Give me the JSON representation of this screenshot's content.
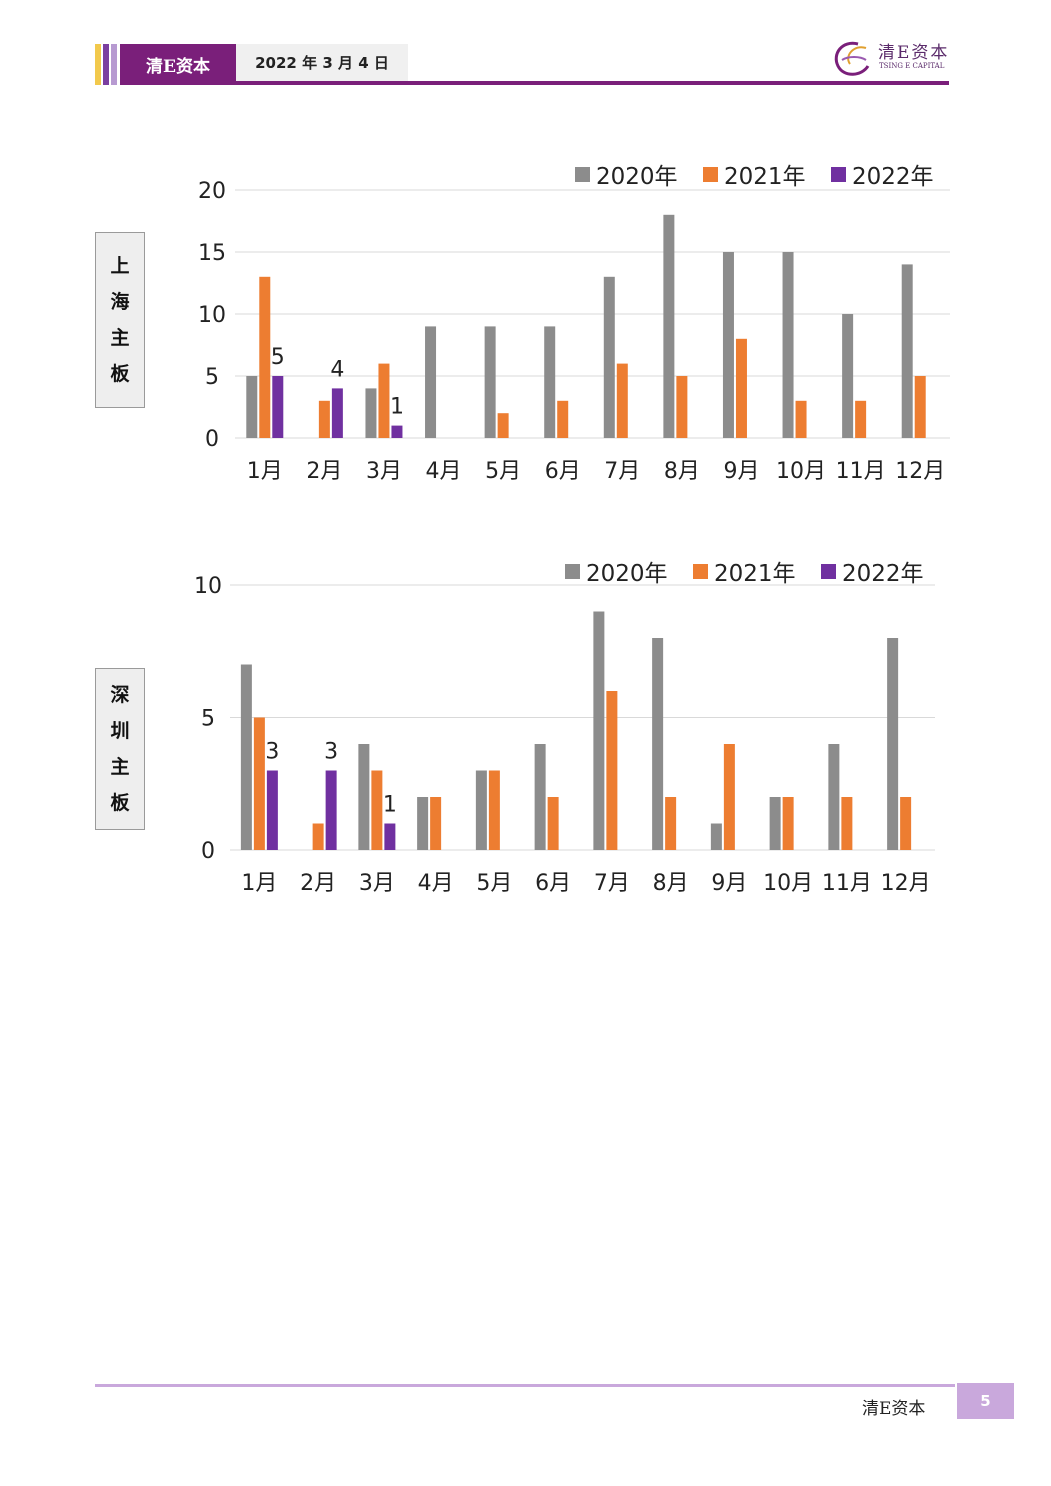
{
  "header": {
    "brand": "清E资本",
    "date": "2022 年 3 月 4 日",
    "logo_cn": "清E资本",
    "logo_en": "TSING E CAPITAL"
  },
  "side_labels": {
    "shanghai": [
      "上",
      "海",
      "主",
      "板"
    ],
    "shenzhen": [
      "深",
      "圳",
      "主",
      "板"
    ]
  },
  "colors": {
    "2020": "#8c8c8c",
    "2021": "#ed7d31",
    "2022": "#7030a0",
    "grid": "#d9d9d9",
    "brand_purple": "#7a1f7a"
  },
  "chart_data": [
    {
      "type": "bar",
      "categories": [
        "1月",
        "2月",
        "3月",
        "4月",
        "5月",
        "6月",
        "7月",
        "8月",
        "9月",
        "10月",
        "11月",
        "12月"
      ],
      "series": [
        {
          "name": "2020年",
          "values": [
            5,
            0,
            4,
            9,
            9,
            9,
            13,
            18,
            15,
            15,
            10,
            14
          ]
        },
        {
          "name": "2021年",
          "values": [
            13,
            3,
            6,
            0,
            2,
            3,
            6,
            5,
            8,
            3,
            3,
            5
          ]
        },
        {
          "name": "2022年",
          "values": [
            5,
            4,
            1,
            null,
            null,
            null,
            null,
            null,
            null,
            null,
            null,
            null
          ],
          "data_labels": true
        }
      ],
      "ylim": [
        0,
        20
      ],
      "yticks": [
        0,
        5,
        10,
        15,
        20
      ],
      "grid": true,
      "legend": "top-right"
    },
    {
      "type": "bar",
      "categories": [
        "1月",
        "2月",
        "3月",
        "4月",
        "5月",
        "6月",
        "7月",
        "8月",
        "9月",
        "10月",
        "11月",
        "12月"
      ],
      "series": [
        {
          "name": "2020年",
          "values": [
            7,
            0,
            4,
            2,
            3,
            4,
            9,
            8,
            1,
            2,
            4,
            8
          ]
        },
        {
          "name": "2021年",
          "values": [
            5,
            1,
            3,
            2,
            3,
            2,
            6,
            2,
            4,
            2,
            2,
            2
          ]
        },
        {
          "name": "2022年",
          "values": [
            3,
            3,
            1,
            null,
            null,
            null,
            null,
            null,
            null,
            null,
            null,
            null
          ],
          "data_labels": true
        }
      ],
      "ylim": [
        0,
        10
      ],
      "yticks": [
        0,
        5,
        10
      ],
      "grid": true,
      "legend": "top-right"
    }
  ],
  "footer": {
    "brand": "清E资本",
    "page": "5"
  }
}
